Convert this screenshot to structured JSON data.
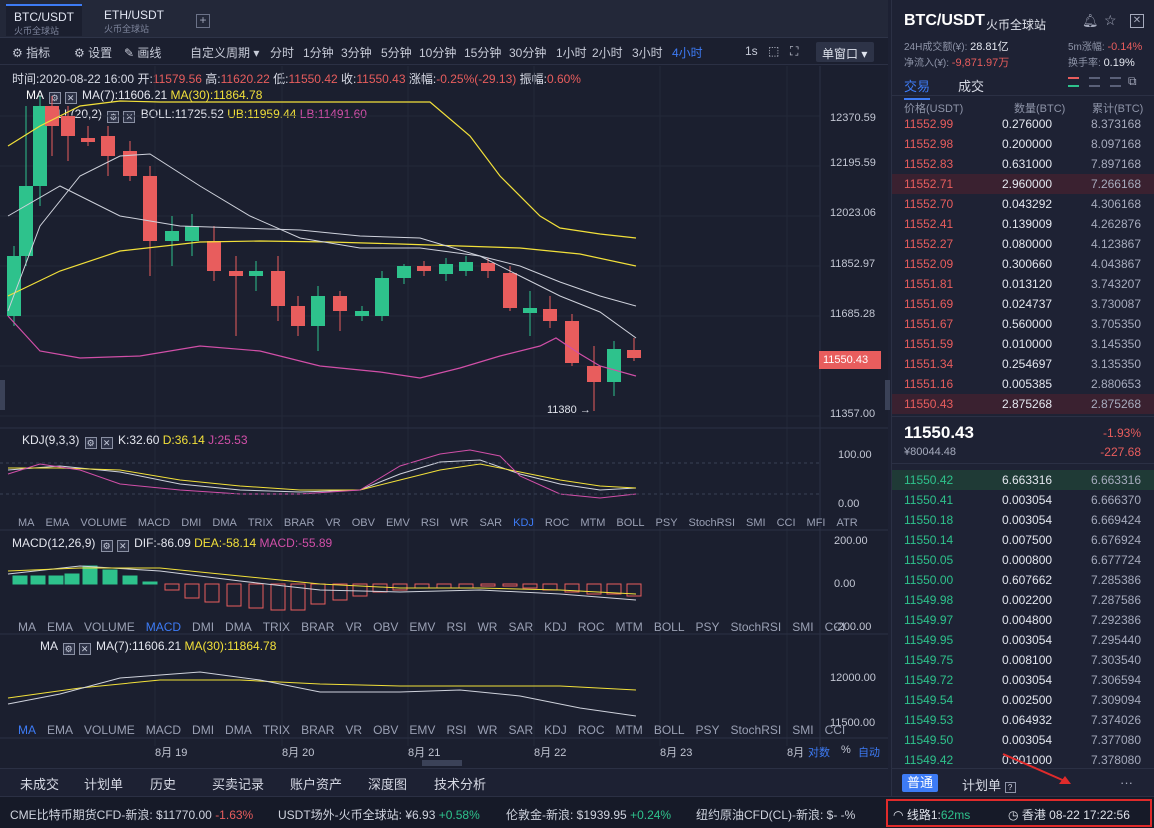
{
  "tabs": [
    {
      "title": "BTC/USDT",
      "sub": "火币全球站"
    },
    {
      "title": "ETH/USDT",
      "sub": "火币全球站"
    }
  ],
  "add_tab": "+",
  "toolbar": {
    "indicators": "指标",
    "settings": "设置",
    "draw": "画线",
    "custom_period": "自定义周期",
    "periods": [
      "分时",
      "1分钟",
      "3分钟",
      "5分钟",
      "10分钟",
      "15分钟",
      "30分钟",
      "1小时",
      "2小时",
      "3小时",
      "4小时"
    ],
    "active_period": "4小时",
    "second": "1s",
    "window_mode": "单窗口"
  },
  "info": {
    "time_label": "时间:",
    "time": "2020-08-22 16:00",
    "open_label": "开:",
    "open": "11579.56",
    "high_label": "高:",
    "high": "11620.22",
    "low_label": "低:",
    "low": "11550.42",
    "close_label": "收:",
    "close": "11550.43",
    "change_label": "涨幅:",
    "change": "-0.25%(-29.13)",
    "amp_label": "振幅:",
    "amp": "0.60%"
  },
  "main_indicators": {
    "ma_label": "MA",
    "ma7": "MA(7):11606.21",
    "ma30": "MA(30):11864.78",
    "boll_label": "BOLL(20,2)",
    "boll": "BOLL:11725.52",
    "ub": "UB:11959.44",
    "lb": "LB:11491.60"
  },
  "price_axis": [
    "12370.59",
    "12195.59",
    "12023.06",
    "11852.97",
    "11685.28",
    "11515.97",
    "11357.00"
  ],
  "last_price_tag": "11550.43",
  "low_marker": "11380 →",
  "kdj": {
    "label": "KDJ(9,3,3)",
    "k": "K:32.60",
    "d": "D:36.14",
    "j": "J:25.53",
    "axis": [
      "100.00",
      "0.00"
    ]
  },
  "kdj_tabs": [
    "MA",
    "EMA",
    "VOLUME",
    "MACD",
    "DMI",
    "DMA",
    "TRIX",
    "BRAR",
    "VR",
    "OBV",
    "EMV",
    "RSI",
    "WR",
    "SAR",
    "KDJ",
    "ROC",
    "MTM",
    "BOLL",
    "PSY",
    "StochRSI",
    "SMI",
    "CCI",
    "MFI",
    "ATR"
  ],
  "kdj_active": "KDJ",
  "macd": {
    "label": "MACD(12,26,9)",
    "dif": "DIF:-86.09",
    "dea": "DEA:-58.14",
    "macd": "MACD:-55.89",
    "axis": [
      "200.00",
      "0.00",
      "-200.00"
    ]
  },
  "macd_tabs": [
    "MA",
    "EMA",
    "VOLUME",
    "MACD",
    "DMI",
    "DMA",
    "TRIX",
    "BRAR",
    "VR",
    "OBV",
    "EMV",
    "RSI",
    "WR",
    "SAR",
    "KDJ",
    "ROC",
    "MTM",
    "BOLL",
    "PSY",
    "StochRSI",
    "SMI",
    "CCI"
  ],
  "macd_active": "MACD",
  "ma_pane": {
    "label": "MA",
    "ma7": "MA(7):11606.21",
    "ma30": "MA(30):11864.78",
    "axis": [
      "12000.00",
      "11500.00"
    ]
  },
  "ma_tabs": [
    "MA",
    "EMA",
    "VOLUME",
    "MACD",
    "DMI",
    "DMA",
    "TRIX",
    "BRAR",
    "VR",
    "OBV",
    "EMV",
    "RSI",
    "WR",
    "SAR",
    "KDJ",
    "ROC",
    "MTM",
    "BOLL",
    "PSY",
    "StochRSI",
    "SMI",
    "CCI"
  ],
  "ma_active": "MA",
  "x_axis": [
    "8月 19",
    "8月 20",
    "8月 21",
    "8月 22",
    "8月 23",
    "8月"
  ],
  "axis_opts": {
    "log": "对数",
    "pct": "%",
    "auto": "自动"
  },
  "bottom_tabs": [
    "未成交",
    "计划单",
    "历史",
    "买卖记录",
    "账户资产",
    "深度图",
    "技术分析"
  ],
  "ticker": [
    {
      "name": "CME比特币期货CFD-新浪:",
      "price": "$11770.00",
      "chg": "-1.63%",
      "dir": "dn"
    },
    {
      "name": "USDT场外-火币全球站:",
      "price": "¥6.93",
      "chg": "+0.58%",
      "dir": "up"
    },
    {
      "name": "伦敦金-新浪:",
      "price": "$1939.95",
      "chg": "+0.24%",
      "dir": "up"
    },
    {
      "name": "纽约原油CFD(CL)-新浪:",
      "price": "$-",
      "chg": "-%",
      "dir": "none"
    }
  ],
  "status": {
    "line_label": "线路1:",
    "latency": "62ms",
    "location_time": "香港 08-22 17:22:56"
  },
  "right": {
    "pair": "BTC/USDT",
    "exchange": "火币全球站",
    "vol_label": "24H成交额(¥):",
    "vol": "28.81亿",
    "chg5_label": "5m涨幅:",
    "chg5": "-0.14%",
    "inflow_label": "净流入(¥):",
    "inflow": "-9,871.97万",
    "turn_label": "换手率:",
    "turn": "0.19%",
    "tab_trade": "交易",
    "tab_deals": "成交",
    "col_price": "价格(USDT)",
    "col_qty": "数量(BTC)",
    "col_cum": "累计(BTC)",
    "asks": [
      [
        "11552.99",
        "0.276000",
        "8.373168"
      ],
      [
        "11552.98",
        "0.200000",
        "8.097168"
      ],
      [
        "11552.83",
        "0.631000",
        "7.897168"
      ],
      [
        "11552.71",
        "2.960000",
        "7.266168"
      ],
      [
        "11552.70",
        "0.043292",
        "4.306168"
      ],
      [
        "11552.41",
        "0.139009",
        "4.262876"
      ],
      [
        "11552.27",
        "0.080000",
        "4.123867"
      ],
      [
        "11552.09",
        "0.300660",
        "4.043867"
      ],
      [
        "11551.81",
        "0.013120",
        "3.743207"
      ],
      [
        "11551.69",
        "0.024737",
        "3.730087"
      ],
      [
        "11551.67",
        "0.560000",
        "3.705350"
      ],
      [
        "11551.59",
        "0.010000",
        "3.145350"
      ],
      [
        "11551.34",
        "0.254697",
        "3.135350"
      ],
      [
        "11551.16",
        "0.005385",
        "2.880653"
      ],
      [
        "11550.43",
        "2.875268",
        "2.875268"
      ]
    ],
    "last": "11550.43",
    "last_cny": "¥80044.48",
    "last_pct": "-1.93%",
    "last_abs": "-227.68",
    "bids": [
      [
        "11550.42",
        "6.663316",
        "6.663316"
      ],
      [
        "11550.41",
        "0.003054",
        "6.666370"
      ],
      [
        "11550.18",
        "0.003054",
        "6.669424"
      ],
      [
        "11550.14",
        "0.007500",
        "6.676924"
      ],
      [
        "11550.05",
        "0.000800",
        "6.677724"
      ],
      [
        "11550.00",
        "0.607662",
        "7.285386"
      ],
      [
        "11549.98",
        "0.002200",
        "7.287586"
      ],
      [
        "11549.97",
        "0.004800",
        "7.292386"
      ],
      [
        "11549.95",
        "0.003054",
        "7.295440"
      ],
      [
        "11549.75",
        "0.008100",
        "7.303540"
      ],
      [
        "11549.72",
        "0.003054",
        "7.306594"
      ],
      [
        "11549.54",
        "0.002500",
        "7.309094"
      ],
      [
        "11549.53",
        "0.064932",
        "7.374026"
      ],
      [
        "11549.50",
        "0.003054",
        "7.377080"
      ],
      [
        "11549.42",
        "0.001000",
        "7.378080"
      ]
    ],
    "order_normal": "普通",
    "order_plan": "计划单",
    "more": "···"
  },
  "colors": {
    "up": "#2ec28c",
    "down": "#e85d5d",
    "accent": "#3d7bf5",
    "bg": "#1b1f2f"
  }
}
